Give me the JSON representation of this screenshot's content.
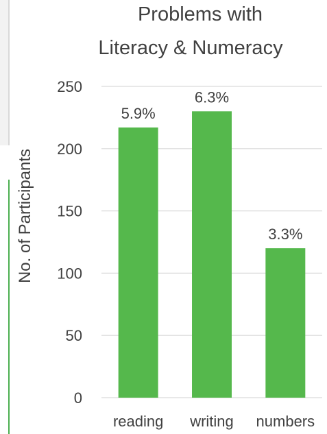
{
  "chart_data": {
    "type": "bar",
    "title_lines": [
      "Problems with",
      "Literacy & Numeracy"
    ],
    "ylabel": "No. of Participants",
    "xlabel": "",
    "categories": [
      "reading",
      "writing",
      "numbers"
    ],
    "values": [
      217,
      230,
      120
    ],
    "data_labels": [
      "5.9%",
      "6.3%",
      "3.3%"
    ],
    "ylim": [
      0,
      250
    ],
    "yticks": [
      0,
      50,
      100,
      150,
      200,
      250
    ],
    "grid": true,
    "legend": "none",
    "bar_color": "#55b84c"
  }
}
